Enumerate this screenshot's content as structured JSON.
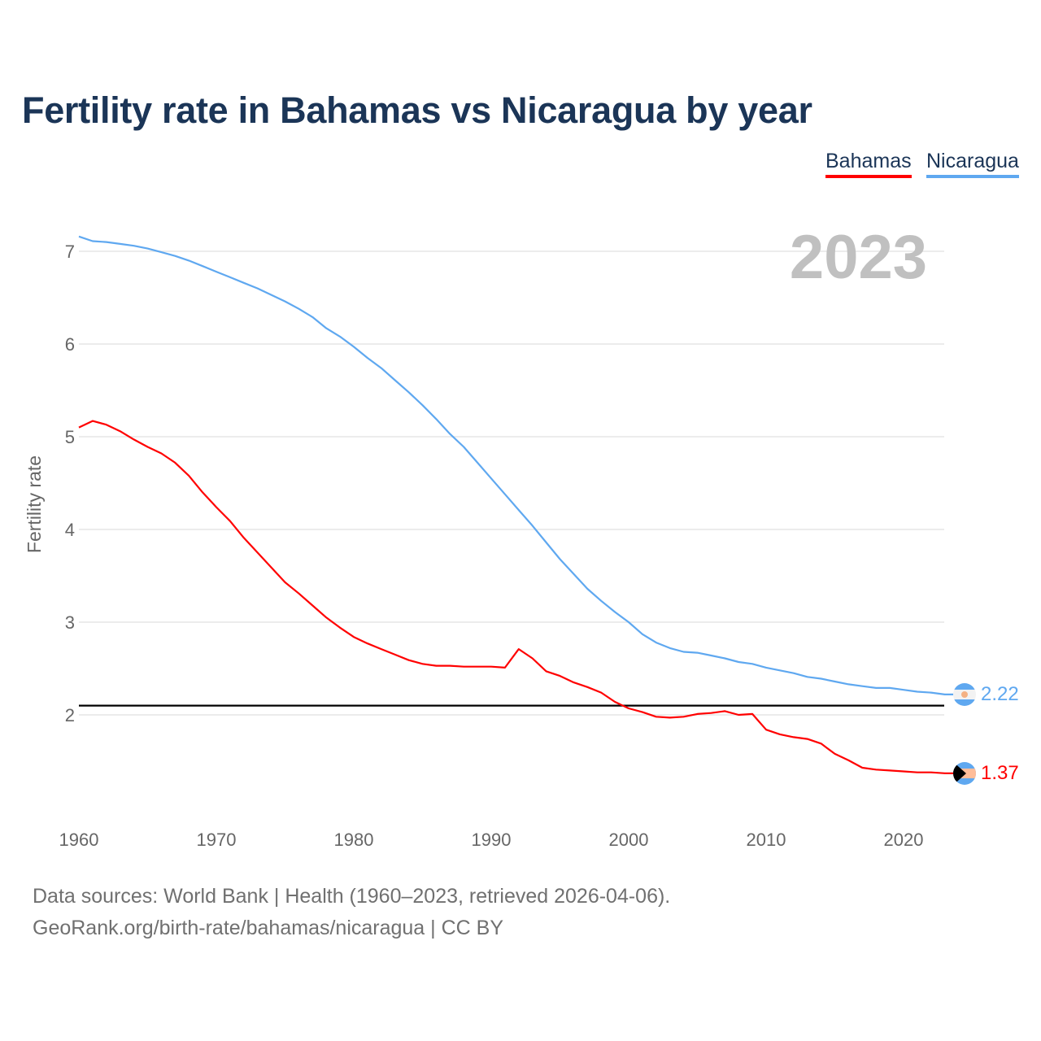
{
  "title": "Fertility rate in Bahamas vs Nicaragua by year",
  "footer": {
    "source": "Data sources: World Bank | Health (1960–2023, retrieved 2026-04-06).",
    "credit": "GeoRank.org/birth-rate/bahamas/nicaragua | CC BY"
  },
  "chart_data": {
    "type": "line",
    "title": "Fertility rate in Bahamas vs Nicaragua by year",
    "ylabel": "Fertility rate",
    "xlabel": "",
    "year_label": "2023",
    "xlim": [
      1960,
      2023
    ],
    "ylim": [
      1.0,
      7.2
    ],
    "x_ticks": [
      "1960",
      "1970",
      "1980",
      "1990",
      "2000",
      "2010",
      "2020"
    ],
    "y_ticks": [
      "2",
      "3",
      "4",
      "5",
      "6",
      "7"
    ],
    "grid": true,
    "legend_position": "top-right",
    "reference_line": {
      "value": 2.1,
      "color": "#000000"
    },
    "x": [
      1960,
      1961,
      1962,
      1963,
      1964,
      1965,
      1966,
      1967,
      1968,
      1969,
      1970,
      1971,
      1972,
      1973,
      1974,
      1975,
      1976,
      1977,
      1978,
      1979,
      1980,
      1981,
      1982,
      1983,
      1984,
      1985,
      1986,
      1987,
      1988,
      1989,
      1990,
      1991,
      1992,
      1993,
      1994,
      1995,
      1996,
      1997,
      1998,
      1999,
      2000,
      2001,
      2002,
      2003,
      2004,
      2005,
      2006,
      2007,
      2008,
      2009,
      2010,
      2011,
      2012,
      2013,
      2014,
      2015,
      2016,
      2017,
      2018,
      2019,
      2020,
      2021,
      2022,
      2023
    ],
    "series": [
      {
        "name": "Bahamas",
        "color": "#ff0000",
        "end_label": "1.37",
        "values": [
          5.1,
          5.17,
          5.13,
          5.06,
          4.97,
          4.89,
          4.82,
          4.72,
          4.58,
          4.4,
          4.24,
          4.09,
          3.91,
          3.75,
          3.59,
          3.43,
          3.31,
          3.18,
          3.05,
          2.94,
          2.84,
          2.77,
          2.71,
          2.65,
          2.59,
          2.55,
          2.53,
          2.53,
          2.52,
          2.52,
          2.52,
          2.51,
          2.71,
          2.61,
          2.47,
          2.42,
          2.35,
          2.3,
          2.24,
          2.14,
          2.07,
          2.03,
          1.98,
          1.97,
          1.98,
          2.01,
          2.02,
          2.04,
          2.0,
          2.01,
          1.84,
          1.79,
          1.76,
          1.74,
          1.69,
          1.58,
          1.51,
          1.43,
          1.41,
          1.4,
          1.39,
          1.38,
          1.38,
          1.37
        ]
      },
      {
        "name": "Nicaragua",
        "color": "#5fa8f0",
        "end_label": "2.22",
        "values": [
          7.16,
          7.11,
          7.1,
          7.08,
          7.06,
          7.03,
          6.99,
          6.95,
          6.9,
          6.84,
          6.78,
          6.72,
          6.66,
          6.6,
          6.53,
          6.46,
          6.38,
          6.29,
          6.17,
          6.08,
          5.97,
          5.85,
          5.74,
          5.61,
          5.48,
          5.34,
          5.19,
          5.03,
          4.89,
          4.72,
          4.55,
          4.38,
          4.21,
          4.04,
          3.86,
          3.68,
          3.52,
          3.36,
          3.23,
          3.11,
          3.0,
          2.87,
          2.78,
          2.72,
          2.68,
          2.67,
          2.64,
          2.61,
          2.57,
          2.55,
          2.51,
          2.48,
          2.45,
          2.41,
          2.39,
          2.36,
          2.33,
          2.31,
          2.29,
          2.29,
          2.27,
          2.25,
          2.24,
          2.22
        ]
      }
    ]
  }
}
